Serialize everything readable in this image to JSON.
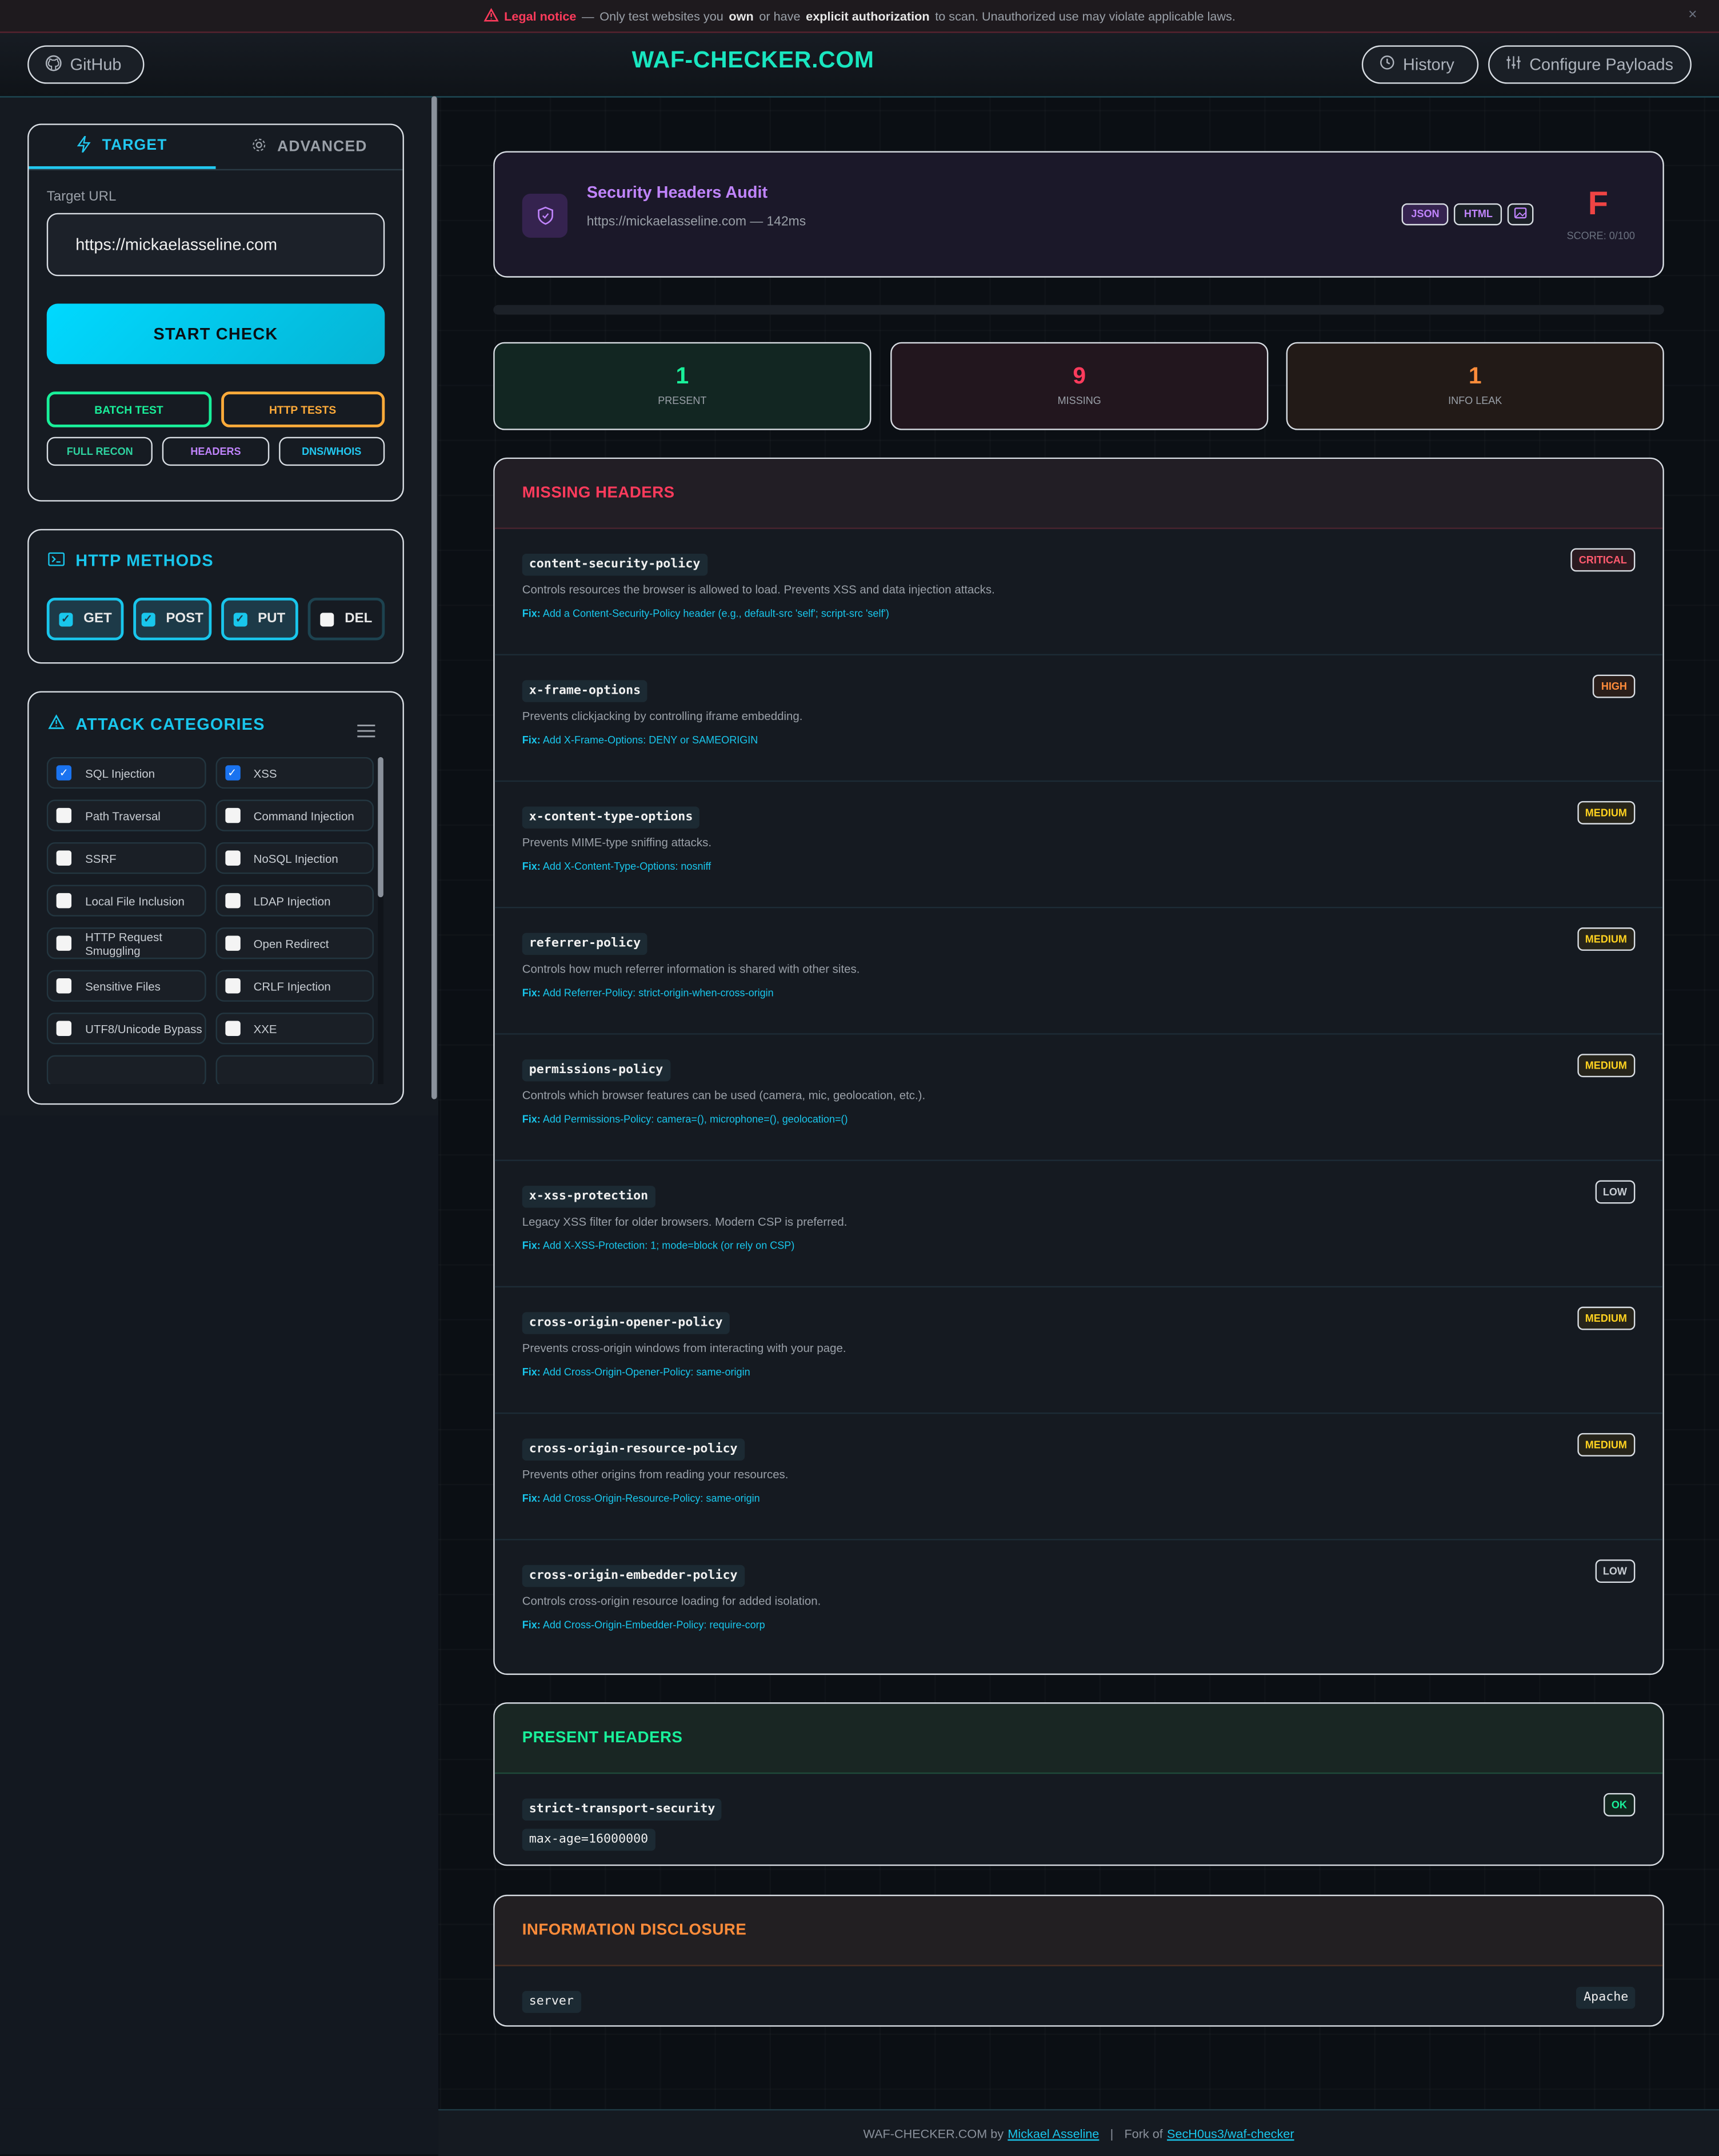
{
  "banner": {
    "label": "Legal notice",
    "dash": "—",
    "t1": "Only test websites you",
    "own": "own",
    "t2": "or have",
    "explicit": "explicit authorization",
    "t3": "to scan. Unauthorized use may violate applicable laws.",
    "close": "×"
  },
  "header": {
    "github": "GitHub",
    "title": "WAF-CHECKER.COM",
    "history": "History",
    "configure": "Configure Payloads"
  },
  "sidebar": {
    "tabs": [
      {
        "label": "TARGET",
        "active": true
      },
      {
        "label": "ADVANCED",
        "active": false
      }
    ],
    "target_label": "Target URL",
    "target_value": "https://mickaelasseline.com",
    "start": "START CHECK",
    "batch": "BATCH TEST",
    "http_tests": "HTTP TESTS",
    "full_recon": "FULL RECON",
    "headers": "HEADERS",
    "dns": "DNS/WHOIS",
    "methods_title": "HTTP METHODS",
    "methods": [
      {
        "label": "GET",
        "checked": true
      },
      {
        "label": "POST",
        "checked": true
      },
      {
        "label": "PUT",
        "checked": true
      },
      {
        "label": "DEL",
        "checked": false
      }
    ],
    "categories_title": "ATTACK CATEGORIES",
    "categories": [
      {
        "label": "SQL Injection",
        "checked": true
      },
      {
        "label": "XSS",
        "checked": true
      },
      {
        "label": "Path Traversal",
        "checked": false
      },
      {
        "label": "Command Injection",
        "checked": false
      },
      {
        "label": "SSRF",
        "checked": false
      },
      {
        "label": "NoSQL Injection",
        "checked": false
      },
      {
        "label": "Local File Inclusion",
        "checked": false
      },
      {
        "label": "LDAP Injection",
        "checked": false
      },
      {
        "label": "HTTP Request Smuggling",
        "checked": false
      },
      {
        "label": "Open Redirect",
        "checked": false
      },
      {
        "label": "Sensitive Files",
        "checked": false
      },
      {
        "label": "CRLF Injection",
        "checked": false
      },
      {
        "label": "UTF8/Unicode Bypass",
        "checked": false
      },
      {
        "label": "XXE",
        "checked": false
      }
    ]
  },
  "audit": {
    "title": "Security Headers Audit",
    "subtitle": "https://mickaelasseline.com — 142ms",
    "json": "JSON",
    "html": "HTML",
    "grade": "F",
    "score": "SCORE: 0/100",
    "progress": 0
  },
  "stats": {
    "present": {
      "value": "1",
      "label": "PRESENT"
    },
    "missing": {
      "value": "9",
      "label": "MISSING"
    },
    "info": {
      "value": "1",
      "label": "INFO LEAK"
    }
  },
  "missing": {
    "title": "MISSING HEADERS",
    "fix_label": "Fix:",
    "items": [
      {
        "name": "content-security-policy",
        "severity": "CRITICAL",
        "desc": "Controls resources the browser is allowed to load. Prevents XSS and data injection attacks.",
        "fix": "Add a Content-Security-Policy header (e.g., default-src 'self'; script-src 'self')"
      },
      {
        "name": "x-frame-options",
        "severity": "HIGH",
        "desc": "Prevents clickjacking by controlling iframe embedding.",
        "fix": "Add X-Frame-Options: DENY or SAMEORIGIN"
      },
      {
        "name": "x-content-type-options",
        "severity": "MEDIUM",
        "desc": "Prevents MIME-type sniffing attacks.",
        "fix": "Add X-Content-Type-Options: nosniff"
      },
      {
        "name": "referrer-policy",
        "severity": "MEDIUM",
        "desc": "Controls how much referrer information is shared with other sites.",
        "fix": "Add Referrer-Policy: strict-origin-when-cross-origin"
      },
      {
        "name": "permissions-policy",
        "severity": "MEDIUM",
        "desc": "Controls which browser features can be used (camera, mic, geolocation, etc.).",
        "fix": "Add Permissions-Policy: camera=(), microphone=(), geolocation=()"
      },
      {
        "name": "x-xss-protection",
        "severity": "LOW",
        "desc": "Legacy XSS filter for older browsers. Modern CSP is preferred.",
        "fix": "Add X-XSS-Protection: 1; mode=block (or rely on CSP)"
      },
      {
        "name": "cross-origin-opener-policy",
        "severity": "MEDIUM",
        "desc": "Prevents cross-origin windows from interacting with your page.",
        "fix": "Add Cross-Origin-Opener-Policy: same-origin"
      },
      {
        "name": "cross-origin-resource-policy",
        "severity": "MEDIUM",
        "desc": "Prevents other origins from reading your resources.",
        "fix": "Add Cross-Origin-Resource-Policy: same-origin"
      },
      {
        "name": "cross-origin-embedder-policy",
        "severity": "LOW",
        "desc": "Controls cross-origin resource loading for added isolation.",
        "fix": "Add Cross-Origin-Embedder-Policy: require-corp"
      }
    ]
  },
  "present": {
    "title": "PRESENT HEADERS",
    "items": [
      {
        "name": "strict-transport-security",
        "value": "max-age=16000000",
        "status": "OK"
      }
    ]
  },
  "info": {
    "title": "INFORMATION DISCLOSURE",
    "items": [
      {
        "name": "server",
        "value": "Apache"
      }
    ]
  },
  "footer": {
    "brand": "WAF-CHECKER.COM by",
    "author": "Mickael Asseline",
    "sep": "|",
    "fork": "Fork of",
    "repo": "SecH0us3/waf-checker"
  },
  "colors": {
    "accent": "#19c6ec",
    "brand": "#19e6c0",
    "critical": "#ff5a6e",
    "high": "#ff8c3a",
    "medium": "#ffd21f",
    "low": "#c8cdd3",
    "ok": "#19f09a",
    "purple": "#c084fc"
  }
}
